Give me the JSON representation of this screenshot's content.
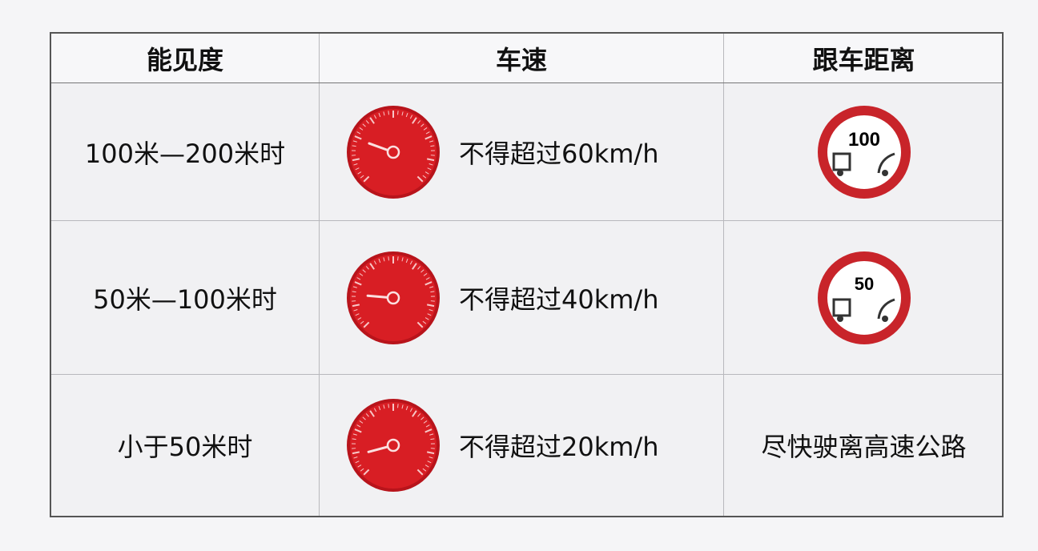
{
  "headers": [
    "能见度",
    "车速",
    "跟车距离"
  ],
  "rows": [
    {
      "visibility": "100米—200米时",
      "speed": "不得超过60km/h",
      "gauge_icon": "speedometer-icon",
      "distance_sign": "100"
    },
    {
      "visibility": "50米—100米时",
      "speed": "不得超过40km/h",
      "gauge_icon": "speedometer-icon",
      "distance_sign": "50"
    },
    {
      "visibility": "小于50米时",
      "speed": "不得超过20km/h",
      "gauge_icon": "speedometer-icon",
      "distance": "尽快驶离高速公路"
    }
  ],
  "colors": {
    "gauge": "#d81e24",
    "sign_ring": "#c8242a",
    "border": "#555555"
  }
}
